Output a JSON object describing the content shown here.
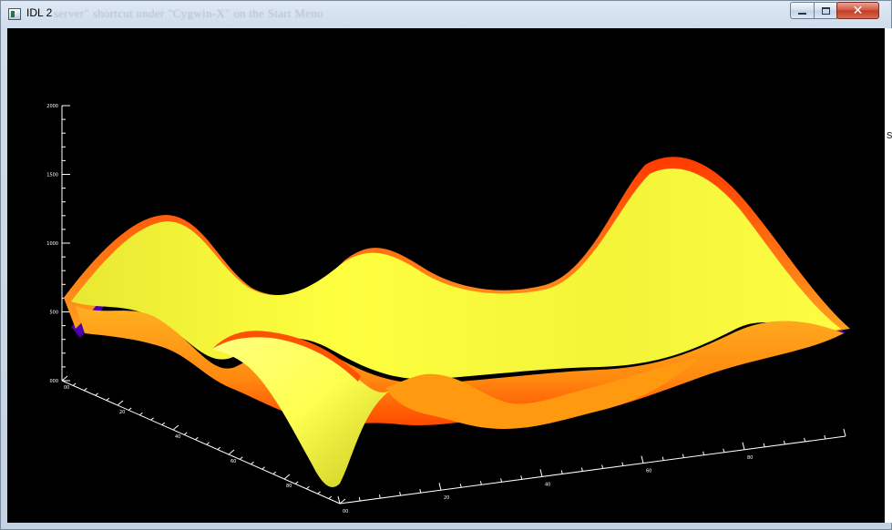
{
  "window": {
    "title": "IDL 2",
    "background_ghost_text": "server\" shortcut under \"Cygwin-X\" on the Start Menu",
    "right_clip_text": "s",
    "controls": {
      "minimize_icon": "minimize-icon",
      "maximize_icon": "maximize-icon",
      "close_icon": "close-icon",
      "close_glyph": "✕"
    }
  },
  "plot": {
    "type": "surface-3d",
    "background": "#000000",
    "axis_color": "#ffffff",
    "surface_colors": [
      "#ffff40",
      "#ffa000",
      "#ff3000",
      "#5000c0"
    ],
    "z_axis": {
      "tick_labels": [
        "000",
        "500",
        "1000",
        "1500",
        "2000"
      ]
    },
    "x_axis": {
      "tick_labels": [
        "00",
        "20",
        "40",
        "60",
        "80"
      ]
    },
    "y_axis": {
      "tick_labels": [
        "00",
        "20",
        "40",
        "60",
        "80"
      ]
    }
  }
}
